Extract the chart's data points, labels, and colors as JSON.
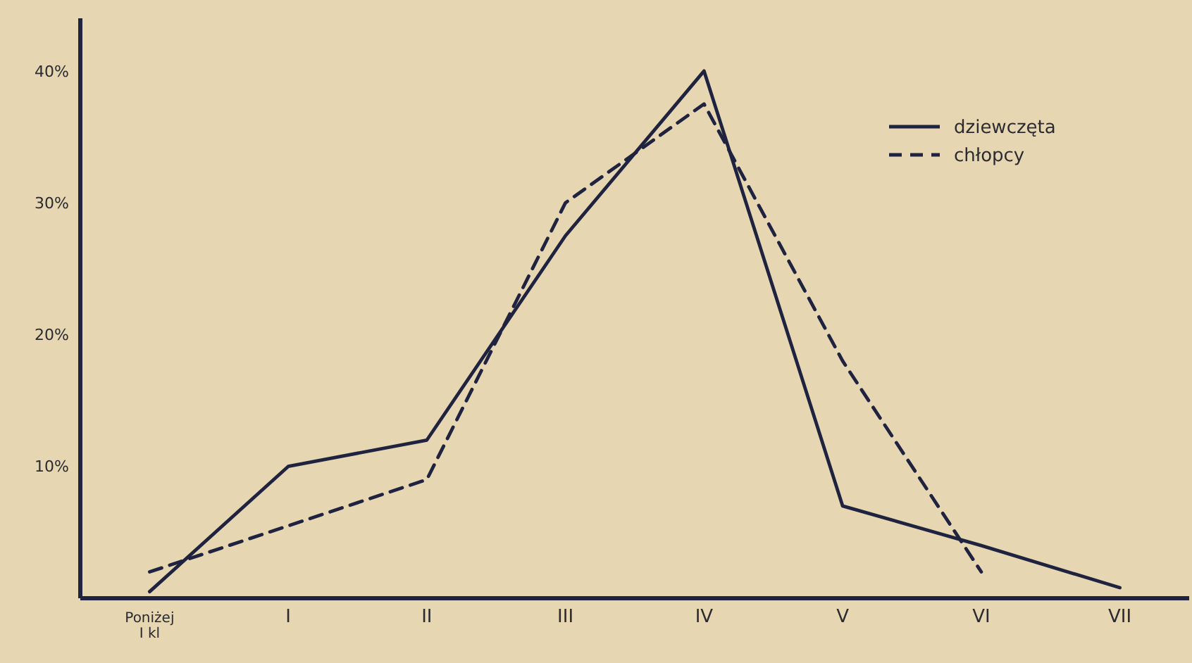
{
  "chart_data": {
    "type": "line",
    "categories": [
      "Poniżej I kl",
      "I",
      "II",
      "III",
      "IV",
      "V",
      "VI",
      "VII"
    ],
    "series": [
      {
        "name": "dziewczęta",
        "color": "#1f2340",
        "line_style": "solid",
        "values": [
          0.5,
          10,
          12,
          27.5,
          40,
          7,
          4,
          0.8
        ]
      },
      {
        "name": "chłopcy",
        "color": "#1f2340",
        "line_style": "dashed",
        "values": [
          2,
          5.5,
          9,
          30,
          37.5,
          18,
          2,
          null
        ]
      }
    ],
    "ylim": [
      0,
      44
    ],
    "yticks": [
      {
        "value": 10,
        "label": "10%"
      },
      {
        "value": 20,
        "label": "20%"
      },
      {
        "value": 30,
        "label": "30%"
      },
      {
        "value": 40,
        "label": "40%"
      }
    ],
    "legend": "top right",
    "grid": false,
    "marker": "none"
  }
}
